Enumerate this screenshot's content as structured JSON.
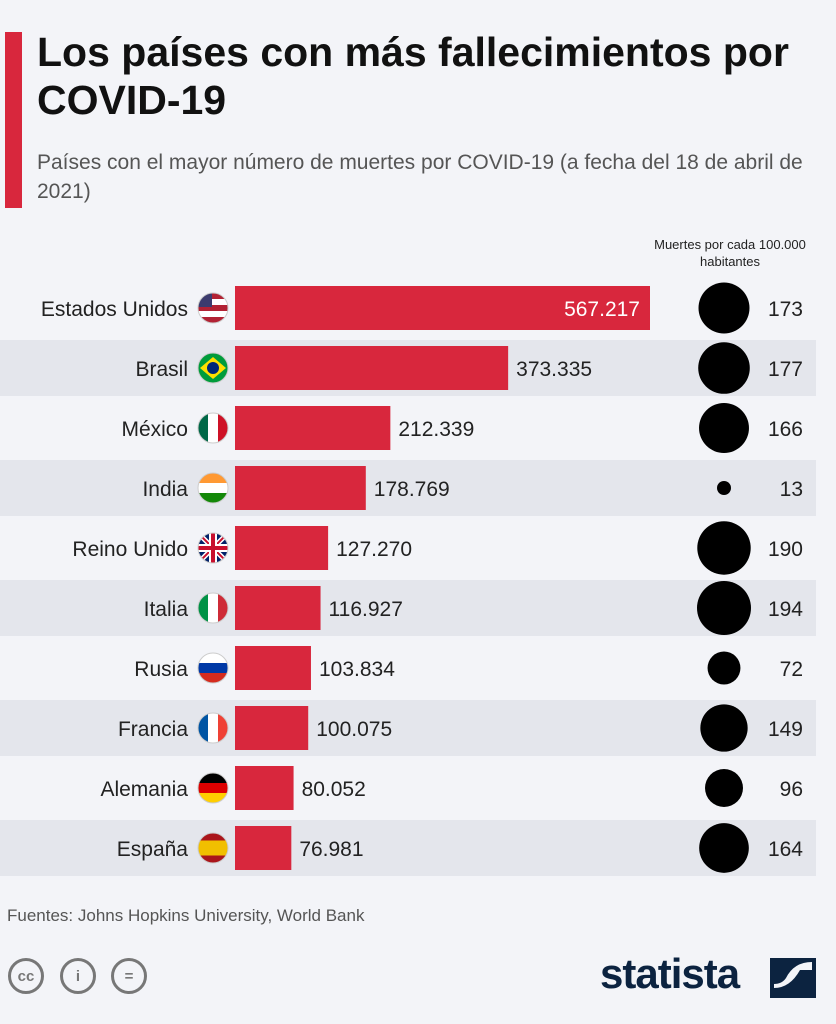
{
  "header": {
    "title": "Los países con más fallecimientos por COVID-19",
    "subtitle": "Países con el mayor número de muertes por COVID-19 (a fecha del 18 de abril de 2021)",
    "column_header": "Muertes por cada 100.000 habitantes"
  },
  "colors": {
    "accent": "#d8273d",
    "bar": "#d8273d",
    "circle": "#000000",
    "row_alt": "#e4e6ec"
  },
  "chart_data": {
    "type": "bar",
    "orientation": "horizontal",
    "title": "Los países con más fallecimientos por COVID-19",
    "categories": [
      "Estados Unidos",
      "Brasil",
      "México",
      "India",
      "Reino Unido",
      "Italia",
      "Rusia",
      "Francia",
      "Alemania",
      "España"
    ],
    "flags": [
      "us-flag-icon",
      "brazil-flag-icon",
      "mexico-flag-icon",
      "india-flag-icon",
      "uk-flag-icon",
      "italy-flag-icon",
      "russia-flag-icon",
      "france-flag-icon",
      "germany-flag-icon",
      "spain-flag-icon"
    ],
    "series": [
      {
        "values": [
          567217,
          373335,
          212339,
          178769,
          127270,
          116927,
          103834,
          100075,
          80052,
          76981
        ],
        "labels": [
          "567.217",
          "373.335",
          "212.339",
          "178.769",
          "127.270",
          "116.927",
          "103.834",
          "100.075",
          "80.052",
          "76.981"
        ]
      },
      {
        "name": "Muertes por cada 100.000 habitantes",
        "type": "bubble",
        "values": [
          173,
          177,
          166,
          13,
          190,
          194,
          72,
          149,
          96,
          164
        ]
      }
    ]
  },
  "footer": {
    "source": "Fuentes: Johns Hopkins University, World Bank",
    "brand": "statista",
    "license_icons": [
      "cc",
      "by",
      "nd"
    ]
  }
}
